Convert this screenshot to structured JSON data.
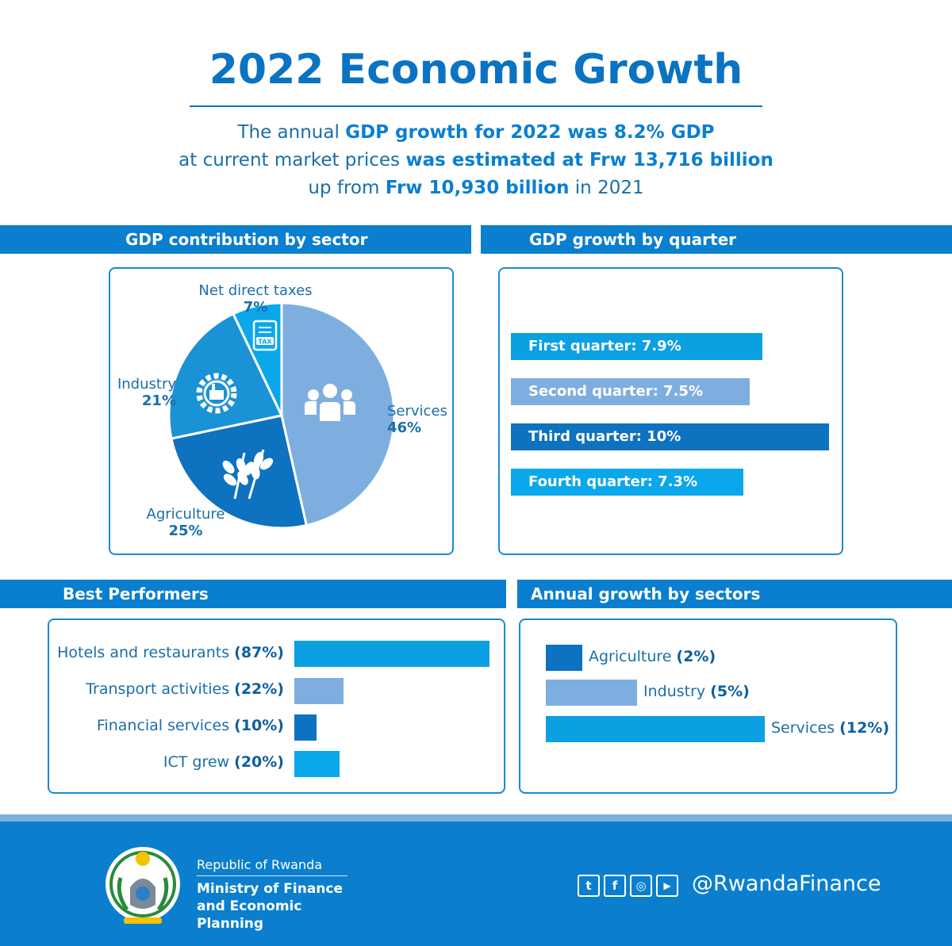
{
  "header": {
    "title": "2022 Economic Growth",
    "line1_a": "The annual ",
    "line1_b": "GDP growth for 2022 was 8.2% GDP",
    "line2_a": "at current market prices ",
    "line2_b": "was estimated at Frw 13,716 billion",
    "line3_a": "up from ",
    "line3_b": "Frw 10,930 billion",
    "line3_c": " in 2021"
  },
  "sections": {
    "contribution": "GDP contribution by sector",
    "quarters": "GDP growth by quarter",
    "best": "Best Performers",
    "annual": "Annual growth by sectors"
  },
  "tax_icon_text": "TAX",
  "chart_data": [
    {
      "type": "pie",
      "title": "GDP contribution by sector",
      "slices": [
        {
          "label": "Services",
          "value": 46,
          "display": "46%",
          "color": "#7eaee0",
          "icon": "people-icon"
        },
        {
          "label": "Agriculture",
          "value": 25,
          "display": "25%",
          "color": "#0d72bf",
          "icon": "wheat-icon"
        },
        {
          "label": "Industry",
          "value": 21,
          "display": "21%",
          "color": "#1a92d6",
          "icon": "factory-gear-icon"
        },
        {
          "label": "Net direct taxes",
          "value": 7,
          "display": "7%",
          "color": "#0aa7ea",
          "icon": "tax-document-icon"
        }
      ]
    },
    {
      "type": "bar",
      "orientation": "horizontal",
      "title": "GDP growth by quarter",
      "categories": [
        "First quarter",
        "Second quarter",
        "Third quarter",
        "Fourth quarter"
      ],
      "values": [
        7.9,
        7.5,
        10,
        7.3
      ],
      "labels": [
        "First quarter: 7.9%",
        "Second quarter: 7.5%",
        "Third quarter: 10%",
        "Fourth quarter: 7.3%"
      ],
      "colors": [
        "#0aa0e2",
        "#7eaee0",
        "#0d72bf",
        "#0aa7ea"
      ]
    },
    {
      "type": "bar",
      "orientation": "horizontal",
      "title": "Best Performers",
      "categories": [
        "Hotels and restaurants",
        "Transport activities",
        "Financial services",
        "ICT grew"
      ],
      "values": [
        87,
        22,
        10,
        20
      ],
      "labels": [
        "(87%)",
        "(22%)",
        "(10%)",
        "(20%)"
      ],
      "colors": [
        "#0aa0e2",
        "#7eaee0",
        "#0d72bf",
        "#0aa7ea"
      ]
    },
    {
      "type": "bar",
      "orientation": "horizontal",
      "title": "Annual growth by sectors",
      "categories": [
        "Agriculture",
        "Industry",
        "Services"
      ],
      "values": [
        2,
        5,
        12
      ],
      "labels": [
        "(2%)",
        "(5%)",
        "(12%)"
      ],
      "colors": [
        "#0d72bf",
        "#7eaee0",
        "#0aa0e2"
      ]
    }
  ],
  "footer": {
    "republic": "Republic of Rwanda",
    "ministry": "Ministry of Finance and Economic Planning",
    "handle": "@RwandaFinance",
    "social_icons": [
      "twitter-icon",
      "facebook-icon",
      "instagram-icon",
      "youtube-icon"
    ],
    "social_glyphs": [
      "t",
      "f",
      "◎",
      "▶"
    ]
  }
}
